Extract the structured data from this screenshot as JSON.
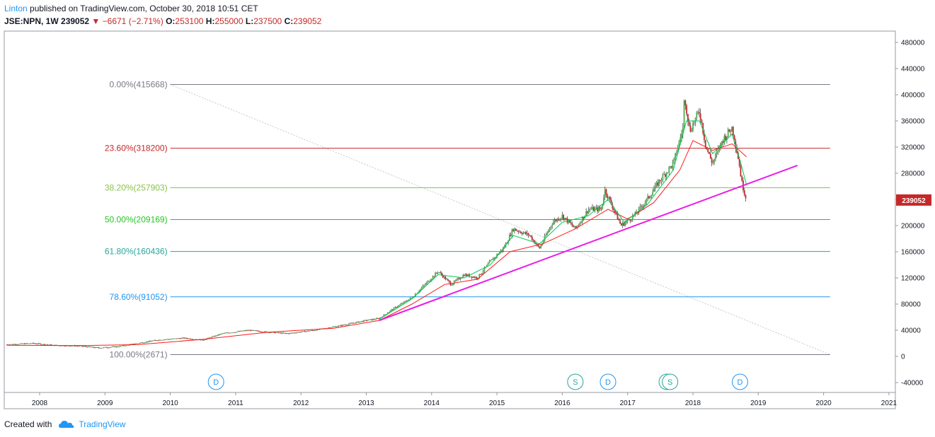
{
  "header": {
    "author": "Linton",
    "published": "published on TradingView.com, October 30, 2018 10:51 CET"
  },
  "quote": {
    "symbol": "JSE:NPN, 1W",
    "last": "239052",
    "change": "−6671 (−2.71%)",
    "open_label": "O:",
    "open": "253100",
    "high_label": "H:",
    "high": "255000",
    "low_label": "L:",
    "low": "237500",
    "close_label": "C:",
    "close": "239052"
  },
  "footer": {
    "created": "Created with",
    "brand": "TradingView"
  },
  "colors": {
    "up": "#4caf50",
    "down": "#c62828",
    "trendline": "#e91ee9",
    "ema_fast": "#00c853",
    "ema_slow": "#ff1a1a",
    "price_tag": "#c62828"
  },
  "chart_data": {
    "type": "candlestick",
    "interval": "1W",
    "ylim": [
      -50000,
      500000
    ],
    "xlim": [
      2007.5,
      2021.0
    ],
    "y_ticks": [
      480000,
      440000,
      400000,
      360000,
      320000,
      280000,
      240000,
      200000,
      160000,
      120000,
      80000,
      40000,
      0,
      -40000
    ],
    "y_tick_labels": [
      "480000",
      "440000",
      "400000",
      "360000",
      "320000",
      "280000",
      "240000",
      "200000",
      "160000",
      "120000",
      "80000",
      "40000",
      "0",
      "-40000"
    ],
    "x_ticks": [
      2008,
      2009,
      2010,
      2011,
      2012,
      2013,
      2014,
      2015,
      2016,
      2017,
      2018,
      2019,
      2020,
      2021
    ],
    "x_tick_labels": [
      "2008",
      "2009",
      "2010",
      "2011",
      "2012",
      "2013",
      "2014",
      "2015",
      "2016",
      "2017",
      "2018",
      "2019",
      "2020",
      "2021"
    ],
    "last_price": 239052,
    "last_price_label": "239052",
    "price_path": [
      [
        2007.5,
        18000
      ],
      [
        2007.9,
        20000
      ],
      [
        2008.2,
        17000
      ],
      [
        2008.6,
        16000
      ],
      [
        2008.9,
        13000
      ],
      [
        2009.2,
        15000
      ],
      [
        2009.5,
        20000
      ],
      [
        2009.8,
        25000
      ],
      [
        2010.2,
        28000
      ],
      [
        2010.5,
        25000
      ],
      [
        2010.8,
        35000
      ],
      [
        2011.2,
        40000
      ],
      [
        2011.5,
        37000
      ],
      [
        2011.8,
        35000
      ],
      [
        2012.2,
        40000
      ],
      [
        2012.6,
        47000
      ],
      [
        2013.0,
        55000
      ],
      [
        2013.2,
        58000
      ],
      [
        2013.4,
        72000
      ],
      [
        2013.7,
        90000
      ],
      [
        2013.9,
        110000
      ],
      [
        2014.1,
        130000
      ],
      [
        2014.3,
        110000
      ],
      [
        2014.5,
        125000
      ],
      [
        2014.7,
        120000
      ],
      [
        2014.9,
        145000
      ],
      [
        2015.1,
        165000
      ],
      [
        2015.25,
        195000
      ],
      [
        2015.5,
        185000
      ],
      [
        2015.65,
        165000
      ],
      [
        2015.85,
        205000
      ],
      [
        2016.0,
        215000
      ],
      [
        2016.2,
        195000
      ],
      [
        2016.4,
        225000
      ],
      [
        2016.6,
        225000
      ],
      [
        2016.65,
        255000
      ],
      [
        2016.9,
        200000
      ],
      [
        2017.1,
        215000
      ],
      [
        2017.3,
        240000
      ],
      [
        2017.5,
        270000
      ],
      [
        2017.7,
        295000
      ],
      [
        2017.85,
        350000
      ],
      [
        2017.87,
        400000
      ],
      [
        2017.95,
        345000
      ],
      [
        2018.1,
        375000
      ],
      [
        2018.2,
        320000
      ],
      [
        2018.3,
        295000
      ],
      [
        2018.45,
        330000
      ],
      [
        2018.6,
        350000
      ],
      [
        2018.65,
        325000
      ],
      [
        2018.7,
        300000
      ],
      [
        2018.75,
        265000
      ],
      [
        2018.82,
        239052
      ]
    ],
    "ema_fast_path": [
      [
        2013.2,
        57000
      ],
      [
        2013.7,
        88000
      ],
      [
        2014.1,
        125000
      ],
      [
        2014.5,
        120000
      ],
      [
        2014.9,
        140000
      ],
      [
        2015.25,
        185000
      ],
      [
        2015.65,
        172000
      ],
      [
        2016.0,
        205000
      ],
      [
        2016.4,
        215000
      ],
      [
        2016.7,
        240000
      ],
      [
        2016.95,
        205000
      ],
      [
        2017.3,
        232000
      ],
      [
        2017.7,
        285000
      ],
      [
        2017.9,
        360000
      ],
      [
        2018.1,
        360000
      ],
      [
        2018.3,
        310000
      ],
      [
        2018.6,
        340000
      ],
      [
        2018.72,
        300000
      ],
      [
        2018.82,
        262000
      ]
    ],
    "ema_slow_path": [
      [
        2007.5,
        17000
      ],
      [
        2008.6,
        16500
      ],
      [
        2009.5,
        18000
      ],
      [
        2010.5,
        26000
      ],
      [
        2011.5,
        37000
      ],
      [
        2012.5,
        43000
      ],
      [
        2013.2,
        55000
      ],
      [
        2013.7,
        80000
      ],
      [
        2014.2,
        110000
      ],
      [
        2014.7,
        118000
      ],
      [
        2015.2,
        160000
      ],
      [
        2015.7,
        172000
      ],
      [
        2016.2,
        195000
      ],
      [
        2016.7,
        225000
      ],
      [
        2017.0,
        210000
      ],
      [
        2017.4,
        235000
      ],
      [
        2017.8,
        285000
      ],
      [
        2018.0,
        330000
      ],
      [
        2018.3,
        315000
      ],
      [
        2018.6,
        325000
      ],
      [
        2018.82,
        305000
      ]
    ],
    "trendline": [
      [
        2013.2,
        55000
      ],
      [
        2019.6,
        292000
      ]
    ],
    "fib_diag": [
      [
        2010.0,
        415668
      ],
      [
        2020.1,
        2671
      ]
    ],
    "fib_levels": [
      {
        "label": "0.00%(415668)",
        "value": 415668,
        "color": "#787b86"
      },
      {
        "label": "23.60%(318200)",
        "value": 318200,
        "color": "#c62828"
      },
      {
        "label": "38.20%(257903)",
        "value": 257903,
        "color": "#8bc34a"
      },
      {
        "label": "50.00%(209169)",
        "value": 209169,
        "color": "#22c522"
      },
      {
        "label": "61.80%(160436)",
        "value": 160436,
        "color": "#26a69a"
      },
      {
        "label": "78.60%(91052)",
        "value": 91052,
        "color": "#2196f3"
      },
      {
        "label": "100.00%(2671)",
        "value": 2671,
        "color": "#787b86"
      }
    ],
    "fib_x_range": [
      2010.0,
      2020.1
    ],
    "events": [
      {
        "type": "D",
        "x": 2010.7,
        "color": "#2196f3"
      },
      {
        "type": "S",
        "x": 2016.2,
        "color": "#26a69a"
      },
      {
        "type": "D",
        "x": 2016.7,
        "color": "#2196f3"
      },
      {
        "type": "S",
        "x": 2017.6,
        "color": "#26a69a"
      },
      {
        "type": "S",
        "x": 2017.65,
        "color": "#26a69a"
      },
      {
        "type": "D",
        "x": 2018.72,
        "color": "#2196f3"
      }
    ]
  }
}
